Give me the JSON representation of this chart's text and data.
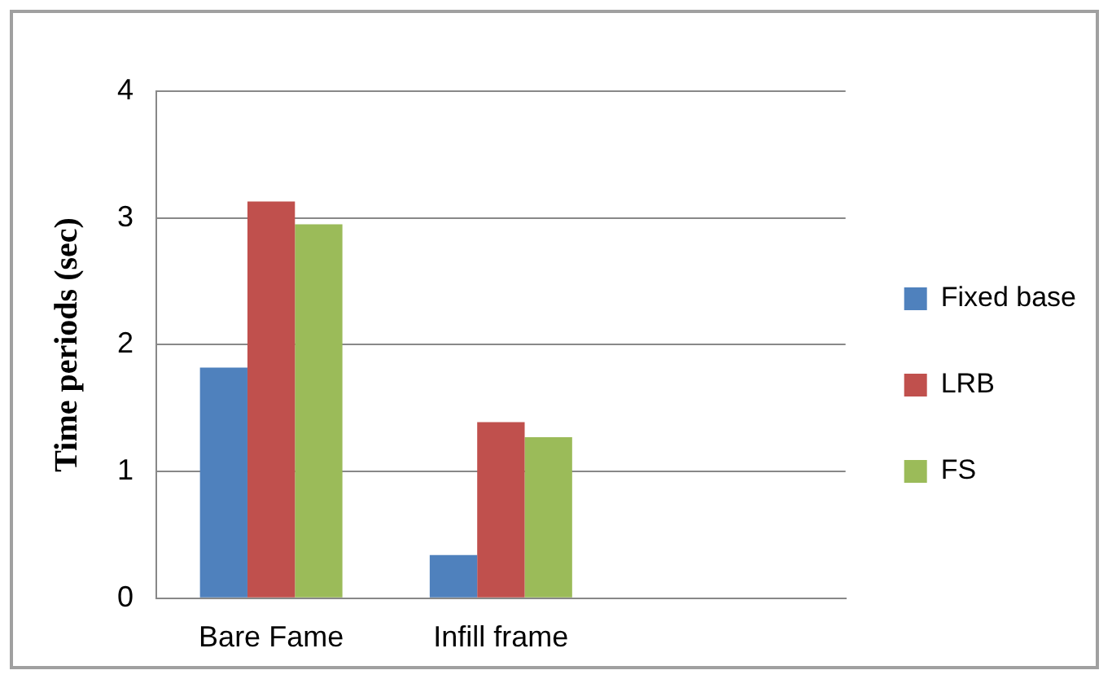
{
  "chart_data": {
    "type": "bar",
    "ylabel": "Time periods (sec)",
    "categories": [
      "Bare Fame",
      "Infill frame",
      null
    ],
    "series": [
      {
        "name": "Fixed base",
        "color": "#4f81bd",
        "values": [
          1.82,
          0.34,
          null
        ]
      },
      {
        "name": "LRB",
        "color": "#c0504d",
        "values": [
          3.13,
          1.39,
          null
        ]
      },
      {
        "name": "FS",
        "color": "#9bbb59",
        "values": [
          2.95,
          1.27,
          null
        ]
      }
    ],
    "ylim": [
      0,
      4
    ],
    "yticks": [
      0,
      1,
      2,
      3,
      4
    ],
    "grid": "y",
    "legend": "right"
  }
}
